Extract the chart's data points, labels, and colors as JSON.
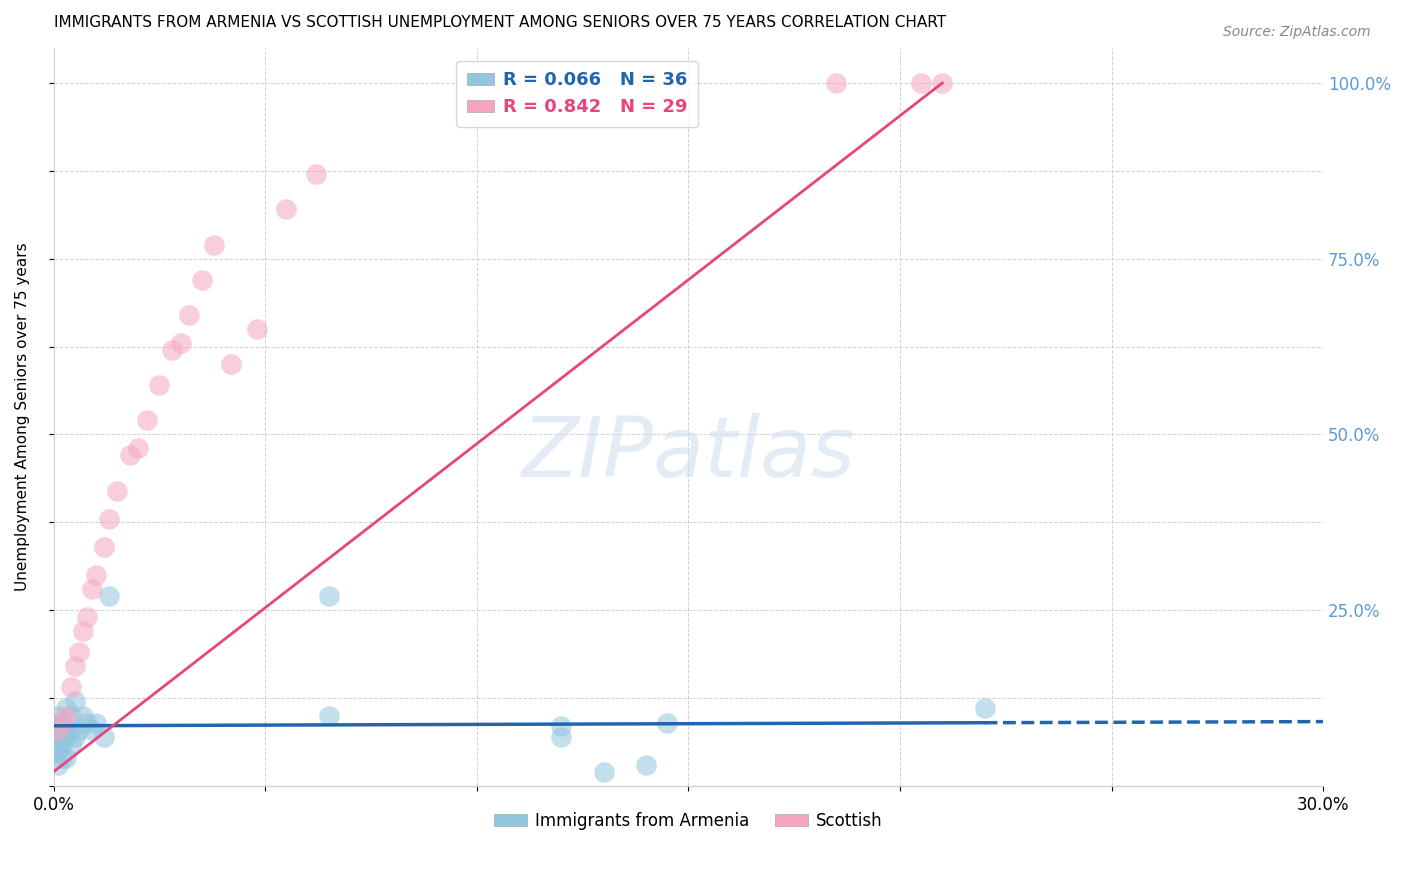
{
  "title": "IMMIGRANTS FROM ARMENIA VS SCOTTISH UNEMPLOYMENT AMONG SENIORS OVER 75 YEARS CORRELATION CHART",
  "source": "Source: ZipAtlas.com",
  "ylabel": "Unemployment Among Seniors over 75 years",
  "xlim": [
    0.0,
    0.3
  ],
  "ylim": [
    0.0,
    1.05
  ],
  "r_armenia": 0.066,
  "n_armenia": 36,
  "r_scottish": 0.842,
  "n_scottish": 29,
  "color_armenia": "#92c5de",
  "color_scottish": "#f4a6c0",
  "line_color_armenia": "#2166ac",
  "line_color_scottish": "#e8457a",
  "background_color": "#ffffff",
  "watermark_color": "#d0dff0",
  "armenia_x": [
    0.0005,
    0.001,
    0.001,
    0.001,
    0.001,
    0.001,
    0.001,
    0.002,
    0.002,
    0.002,
    0.002,
    0.002,
    0.003,
    0.003,
    0.003,
    0.003,
    0.004,
    0.004,
    0.004,
    0.005,
    0.005,
    0.006,
    0.007,
    0.008,
    0.009,
    0.01,
    0.012,
    0.013,
    0.065,
    0.12,
    0.145,
    0.22,
    0.12,
    0.065,
    0.13,
    0.14
  ],
  "armenia_y": [
    0.05,
    0.09,
    0.07,
    0.05,
    0.03,
    0.08,
    0.1,
    0.06,
    0.08,
    0.04,
    0.09,
    0.07,
    0.11,
    0.07,
    0.04,
    0.08,
    0.1,
    0.06,
    0.08,
    0.07,
    0.12,
    0.08,
    0.1,
    0.09,
    0.08,
    0.09,
    0.07,
    0.27,
    0.27,
    0.085,
    0.09,
    0.11,
    0.07,
    0.1,
    0.02,
    0.03
  ],
  "scottish_x": [
    0.001,
    0.002,
    0.003,
    0.004,
    0.005,
    0.006,
    0.007,
    0.008,
    0.009,
    0.01,
    0.012,
    0.013,
    0.015,
    0.018,
    0.02,
    0.022,
    0.025,
    0.028,
    0.03,
    0.032,
    0.035,
    0.038,
    0.042,
    0.048,
    0.055,
    0.062,
    0.185,
    0.205,
    0.21
  ],
  "scottish_y": [
    0.08,
    0.09,
    0.1,
    0.14,
    0.17,
    0.19,
    0.22,
    0.24,
    0.28,
    0.3,
    0.34,
    0.38,
    0.42,
    0.47,
    0.48,
    0.52,
    0.57,
    0.62,
    0.63,
    0.67,
    0.72,
    0.77,
    0.6,
    0.65,
    0.82,
    0.87,
    1.0,
    1.0,
    1.0
  ]
}
